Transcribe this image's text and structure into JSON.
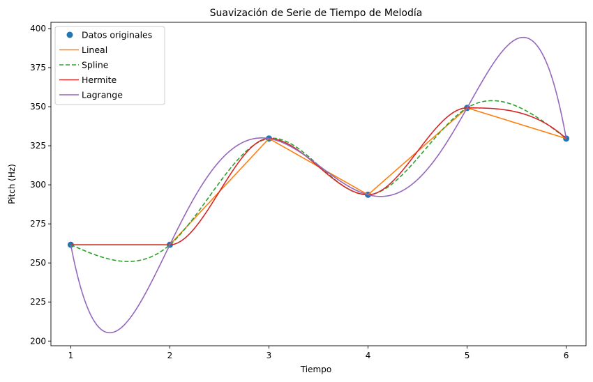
{
  "chart_data": {
    "type": "line",
    "title": "Suavización de Serie de Tiempo de Melodía",
    "xlabel": "Tiempo",
    "ylabel": "Pitch (Hz)",
    "xlim": [
      0.8,
      6.2
    ],
    "ylim": [
      197,
      404
    ],
    "xticks": [
      1,
      2,
      3,
      4,
      5,
      6
    ],
    "yticks": [
      200,
      225,
      250,
      275,
      300,
      325,
      350,
      375,
      400
    ],
    "grid": false,
    "legend_position": "top-left",
    "original_points": {
      "name": "Datos originales",
      "color": "#1f77b4",
      "x": [
        1,
        2,
        3,
        4,
        5,
        6
      ],
      "y": [
        261.63,
        261.63,
        329.63,
        293.66,
        349.23,
        329.63
      ]
    },
    "series": [
      {
        "name": "Lineal",
        "method": "linear",
        "color": "#ff7f0e",
        "dash": "solid"
      },
      {
        "name": "Spline",
        "method": "spline",
        "color": "#2ca02c",
        "dash": "dashed"
      },
      {
        "name": "Hermite",
        "method": "hermite",
        "color": "#d62728",
        "dash": "solid"
      },
      {
        "name": "Lagrange",
        "method": "lagrange",
        "color": "#9467bd",
        "dash": "solid"
      }
    ]
  }
}
